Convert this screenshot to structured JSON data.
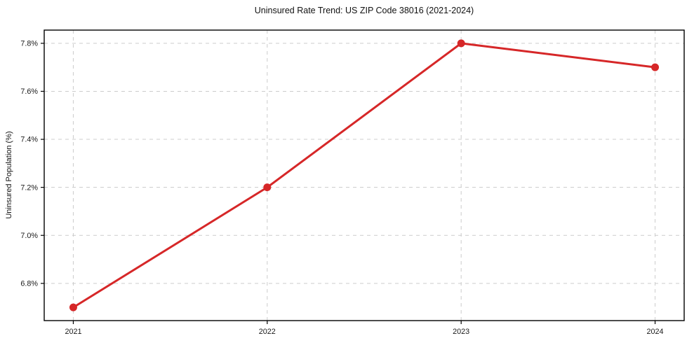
{
  "chart_data": {
    "type": "line",
    "title": "Uninsured Rate Trend: US ZIP Code 38016 (2021-2024)",
    "xlabel": "",
    "ylabel": "Uninsured Population (%)",
    "x": [
      2021,
      2022,
      2023,
      2024
    ],
    "values": [
      6.7,
      7.2,
      7.8,
      7.7
    ],
    "x_tick_labels": [
      "2021",
      "2022",
      "2023",
      "2024"
    ],
    "y_tick_values": [
      6.8,
      7.0,
      7.2,
      7.4,
      7.6,
      7.8
    ],
    "y_tick_labels": [
      "6.8%",
      "7.0%",
      "7.2%",
      "7.4%",
      "7.6%",
      "7.8%"
    ],
    "xlim": [
      2020.85,
      2024.15
    ],
    "ylim": [
      6.645,
      7.855
    ],
    "grid": true,
    "grid_style": "dashed",
    "legend_position": "none",
    "colors": {
      "line": "#d62728",
      "marker": "#d62728",
      "grid": "#cccccc",
      "axis": "#000000",
      "tick_text": "#1a1a1a",
      "background": "#ffffff"
    }
  }
}
